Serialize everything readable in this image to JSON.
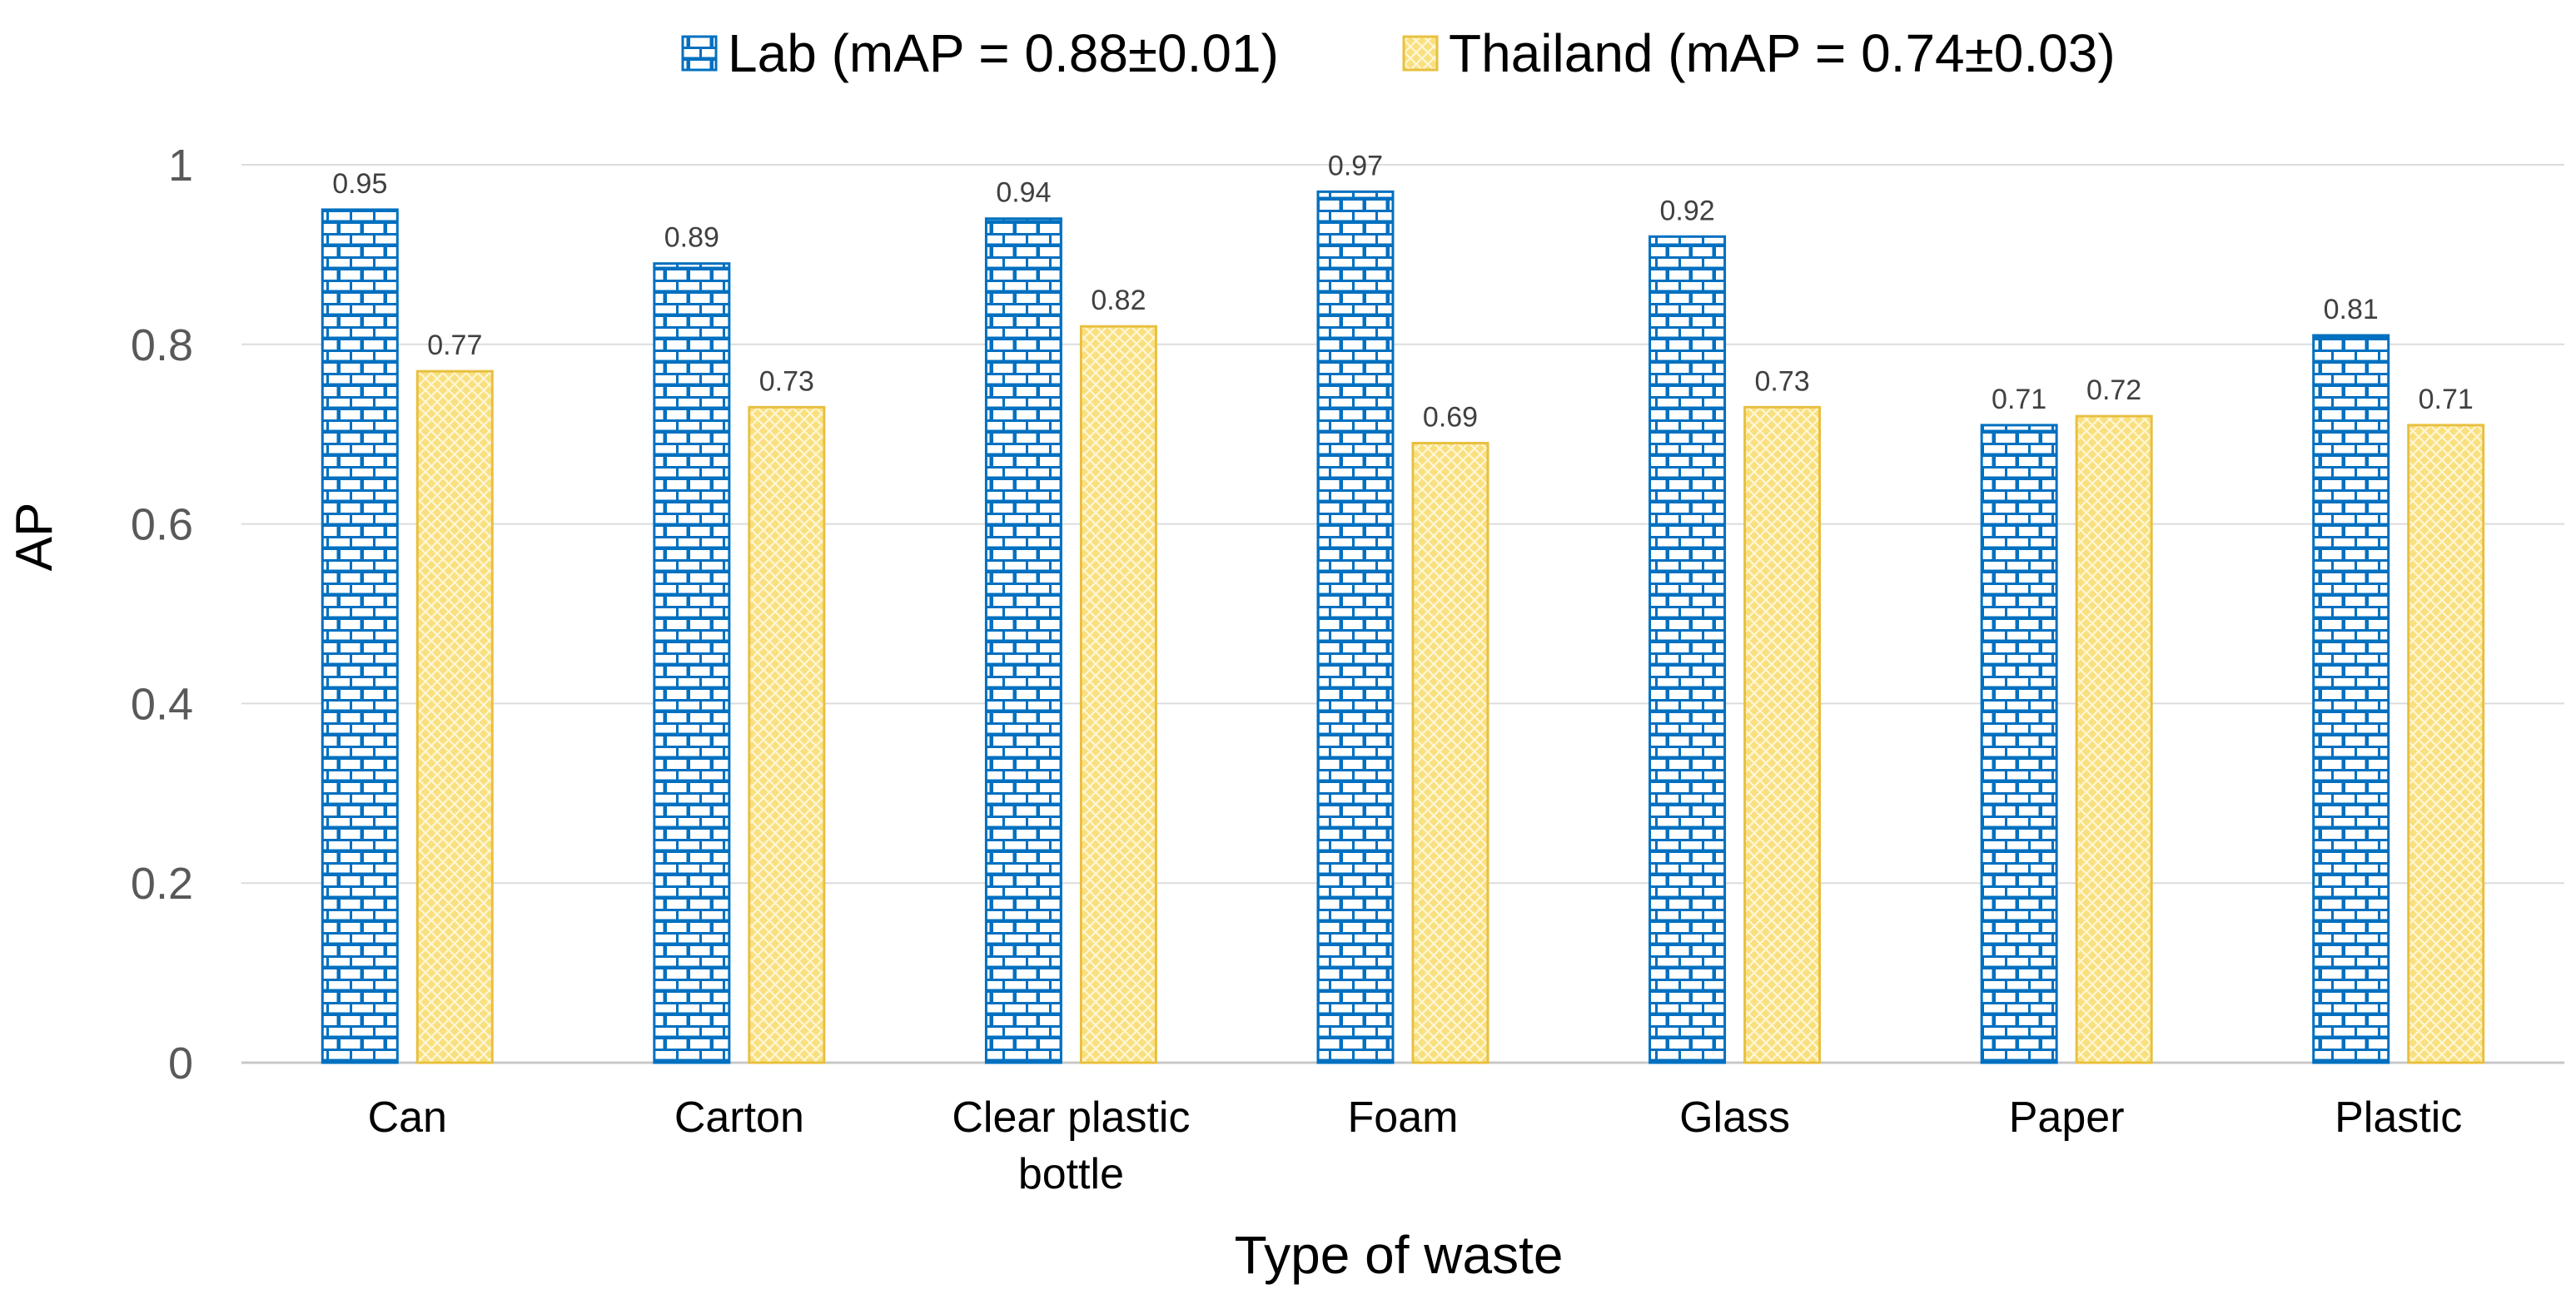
{
  "chart_data": {
    "type": "bar",
    "title": "",
    "xlabel": "Type of waste",
    "ylabel": "AP",
    "ylim": [
      0,
      1
    ],
    "yticks": [
      "0",
      "0.2",
      "0.4",
      "0.6",
      "0.8",
      "1"
    ],
    "grid": true,
    "legend_position": "top",
    "categories": [
      [
        "Can"
      ],
      [
        "Carton"
      ],
      [
        "Clear plastic",
        "bottle"
      ],
      [
        "Foam"
      ],
      [
        "Glass"
      ],
      [
        "Paper"
      ],
      [
        "Plastic"
      ]
    ],
    "series": [
      {
        "name": "Lab (mAP = 0.88±0.01)",
        "values": [
          0.95,
          0.89,
          0.94,
          0.97,
          0.92,
          0.71,
          0.81
        ],
        "labels": [
          "0.95",
          "0.89",
          "0.94",
          "0.97",
          "0.92",
          "0.71",
          "0.81"
        ],
        "pattern": "brick",
        "color": "#0070C0"
      },
      {
        "name": "Thailand (mAP = 0.74±0.03)",
        "values": [
          0.77,
          0.73,
          0.82,
          0.69,
          0.73,
          0.72,
          0.71
        ],
        "labels": [
          "0.77",
          "0.73",
          "0.82",
          "0.69",
          "0.73",
          "0.72",
          "0.71"
        ],
        "pattern": "crosshatch",
        "color": "#F5D76E"
      }
    ]
  }
}
